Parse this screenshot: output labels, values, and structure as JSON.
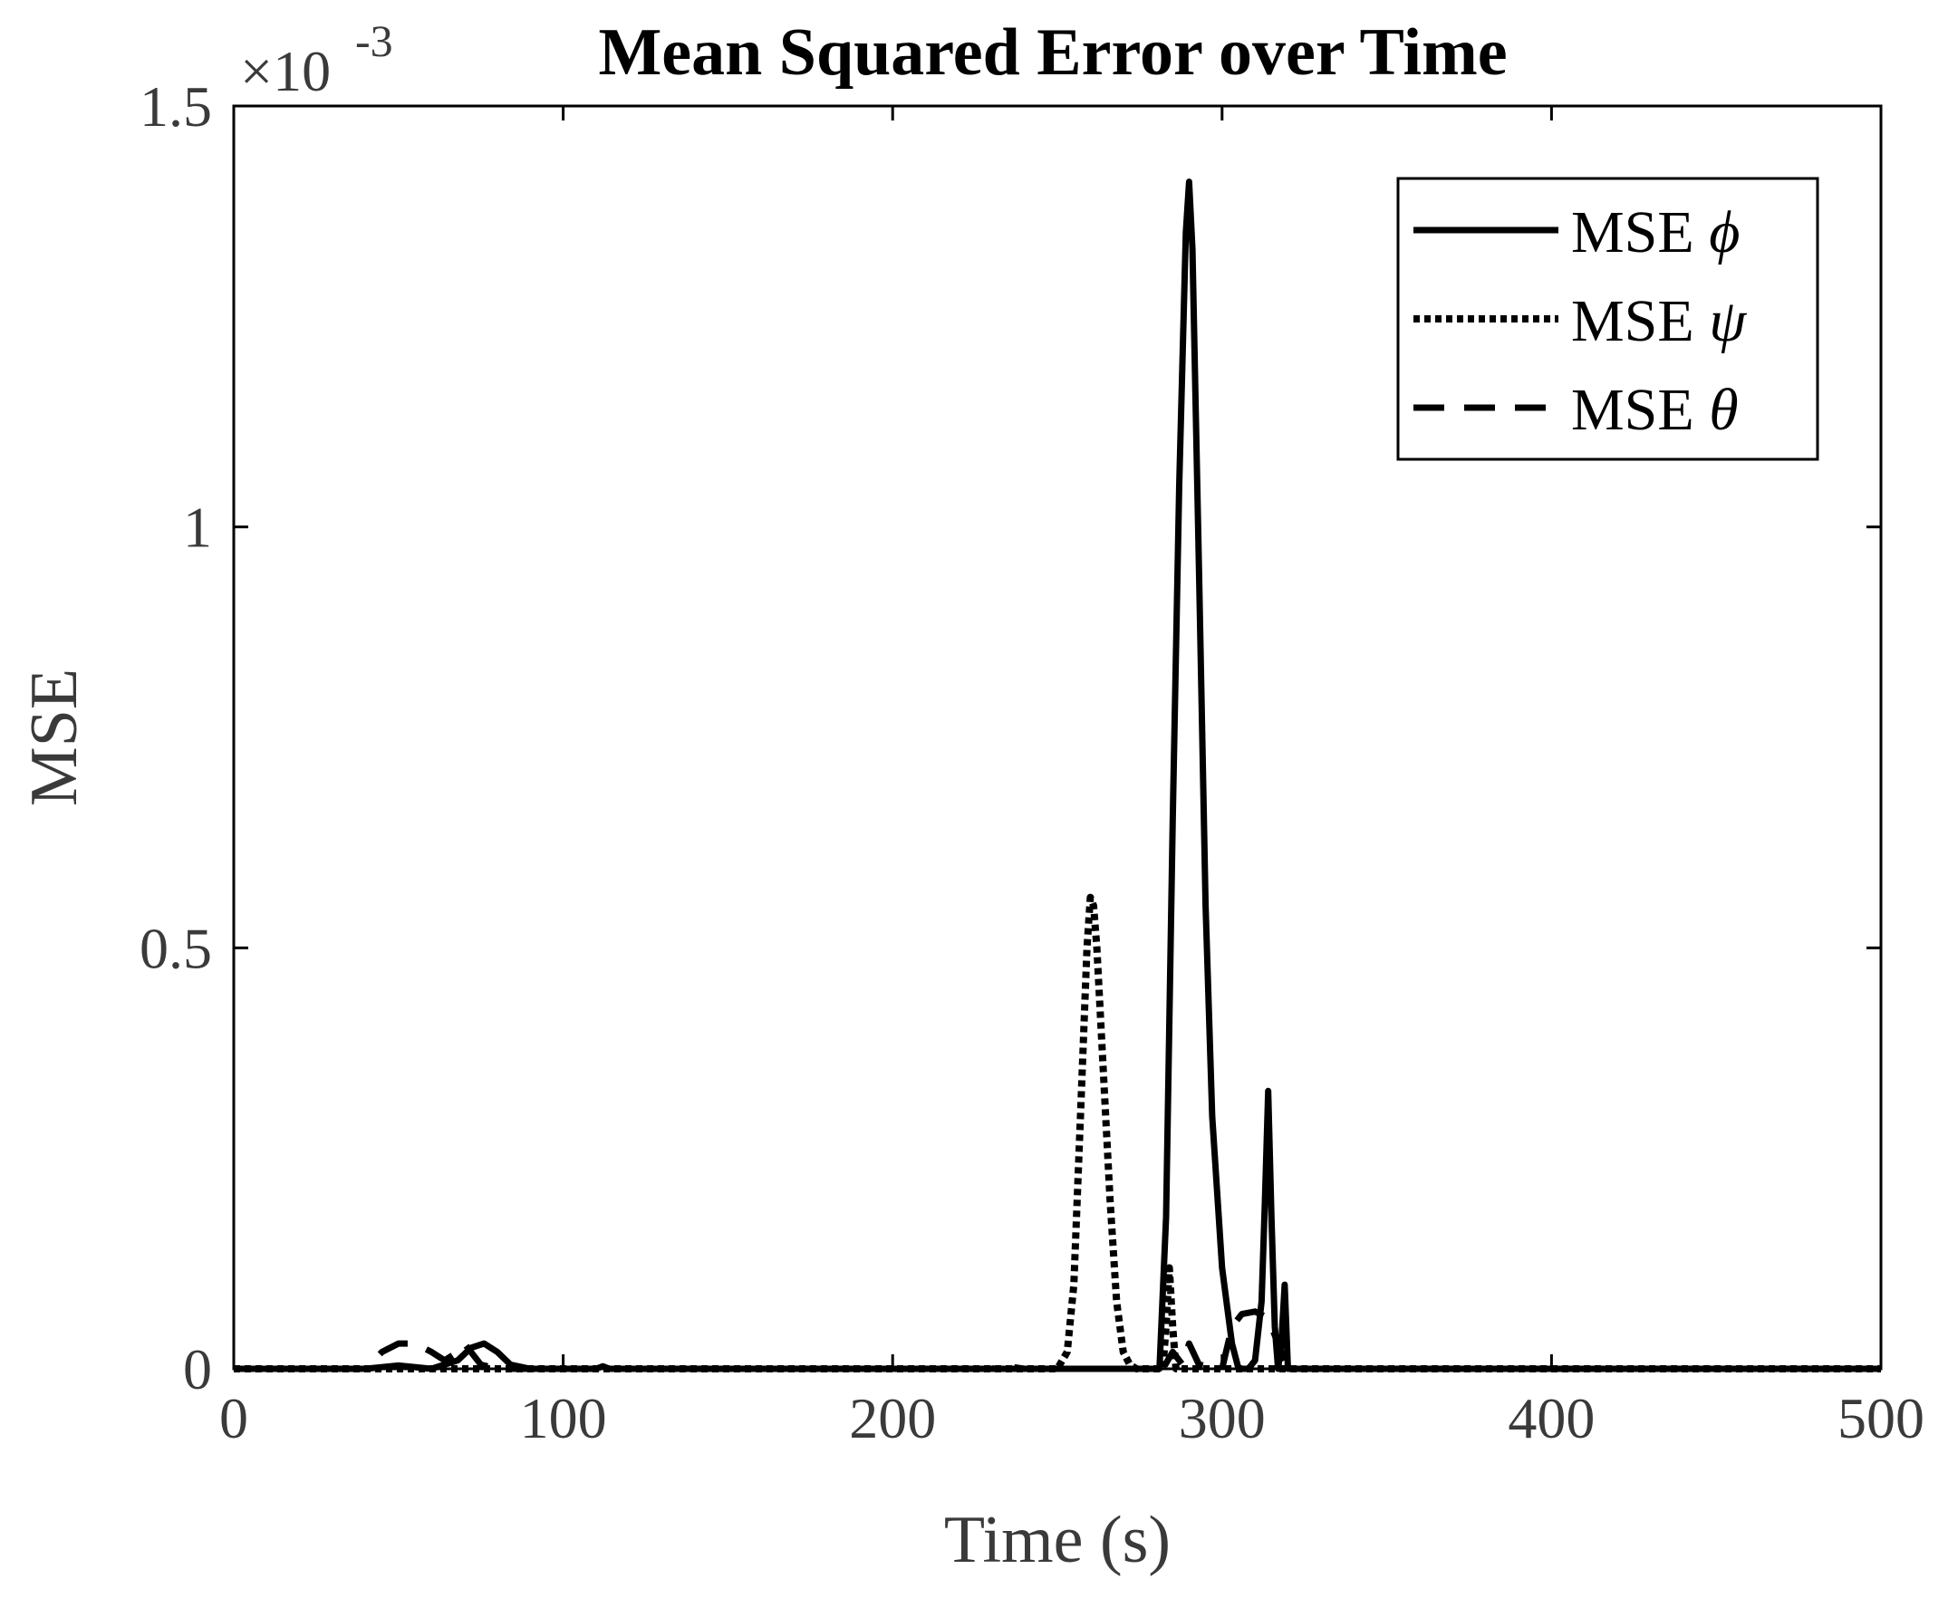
{
  "chart_data": {
    "type": "line",
    "title": "Mean Squared Error over Time",
    "xlabel": "Time (s)",
    "ylabel": "MSE",
    "y_exponent_base": "×10",
    "y_exponent": "-3",
    "xlim": [
      0,
      500
    ],
    "ylim": [
      0,
      1.5
    ],
    "x_ticks": [
      0,
      100,
      200,
      300,
      400,
      500
    ],
    "y_ticks": [
      0,
      0.5,
      1,
      1.5
    ],
    "x_tick_labels": [
      "0",
      "100",
      "200",
      "300",
      "400",
      "500"
    ],
    "y_tick_labels": [
      "0",
      "0.5",
      "1",
      "1.5"
    ],
    "grid": false,
    "legend_position": "top-right",
    "colors": {
      "line": "#000000",
      "axes": "#000000",
      "text": "#3a3a3a"
    },
    "series": [
      {
        "name": "MSE",
        "symbol": "ϕ",
        "style": "solid",
        "x": [
          0,
          40,
          50,
          60,
          68,
          72,
          76,
          80,
          84,
          90,
          110,
          112,
          114,
          200,
          281,
          283,
          285,
          287,
          289,
          290,
          291,
          293,
          295,
          297,
          300,
          303,
          305,
          308,
          310,
          312,
          313,
          314,
          315,
          316,
          317,
          318,
          319,
          320,
          330,
          500
        ],
        "y": [
          0,
          0,
          0.004,
          0.0,
          0.01,
          0.025,
          0.03,
          0.02,
          0.005,
          0,
          0,
          0.003,
          0,
          0,
          0,
          0.18,
          0.65,
          1.05,
          1.35,
          1.41,
          1.33,
          0.95,
          0.55,
          0.3,
          0.12,
          0.03,
          0.0,
          0.0,
          0.01,
          0.08,
          0.2,
          0.33,
          0.18,
          0.05,
          0.0,
          0.03,
          0.1,
          0.0,
          0,
          0
        ]
      },
      {
        "name": "MSE",
        "symbol": "ψ",
        "style": "dotted",
        "x": [
          0,
          250,
          253,
          255,
          257,
          259,
          260,
          261,
          262,
          264,
          266,
          268,
          270,
          272,
          274,
          282,
          283,
          284,
          285,
          286,
          300,
          500
        ],
        "y": [
          0,
          0,
          0.02,
          0.1,
          0.3,
          0.5,
          0.56,
          0.55,
          0.5,
          0.35,
          0.2,
          0.08,
          0.02,
          0.005,
          0,
          0,
          0.05,
          0.12,
          0.05,
          0,
          0,
          0
        ]
      },
      {
        "name": "MSE",
        "symbol": "θ",
        "style": "dashed",
        "x": [
          0,
          40,
          45,
          50,
          55,
          60,
          64,
          68,
          70,
          72,
          75,
          80,
          230,
          235,
          240,
          282,
          285,
          288,
          290,
          293,
          300,
          303,
          306,
          310,
          314,
          318,
          320,
          500
        ],
        "y": [
          0,
          0,
          0.02,
          0.03,
          0.03,
          0.02,
          0.01,
          0.02,
          0.03,
          0.02,
          0.005,
          0,
          0,
          0.003,
          0,
          0,
          0.02,
          0.005,
          0.03,
          0.005,
          0,
          0.05,
          0.065,
          0.068,
          0.06,
          0.02,
          0,
          0
        ]
      }
    ]
  }
}
